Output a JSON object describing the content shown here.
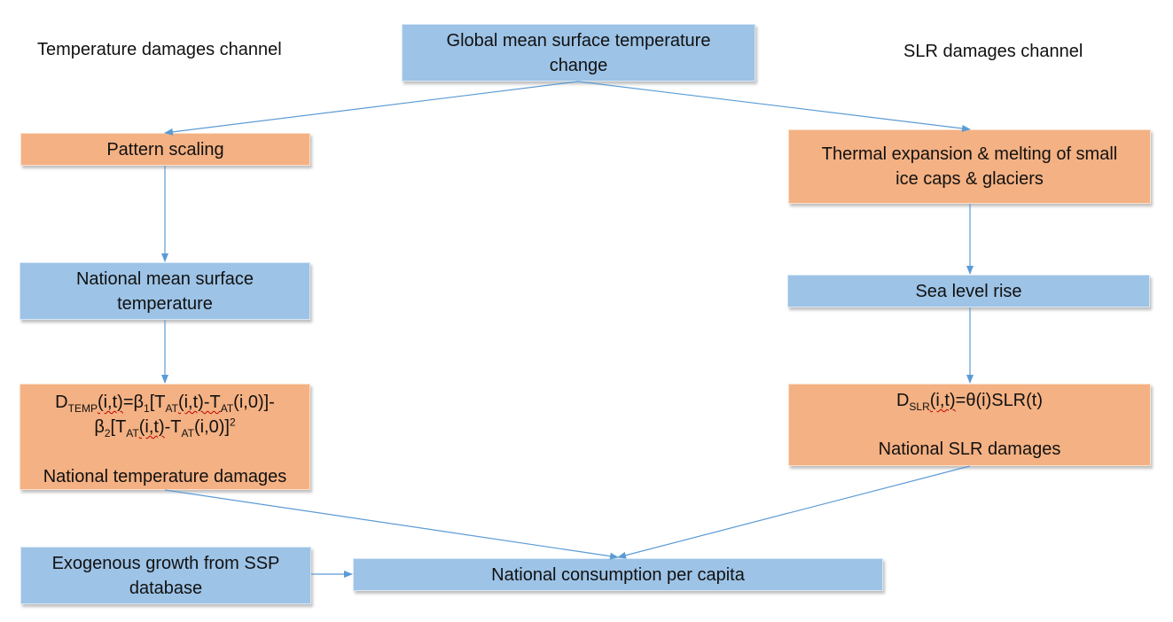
{
  "channels": {
    "left": "Temperature damages channel",
    "right": "SLR damages channel"
  },
  "boxes": {
    "global_temp": "Global mean surface temperature change",
    "pattern_scaling": "Pattern scaling",
    "national_temp": "National mean surface temperature",
    "temp_damages_label": "National temperature damages",
    "thermal_expansion": "Thermal expansion & melting of small ice caps & glaciers",
    "sea_level_rise": "Sea level rise",
    "slr_damages_label": "National SLR damages",
    "exogenous_growth": "Exogenous growth from SSP database",
    "consumption": "National consumption per capita"
  },
  "formulas": {
    "temp": {
      "D": "D",
      "D_sub": "TEMP",
      "args": "(i,t)",
      "eq1": "=β",
      "beta1_sub": "1",
      "br1": "[T",
      "at1": "AT",
      "t1": "(i,t)-T",
      "at2": "AT",
      "t2": "(i,0)]-",
      "beta2": "β",
      "beta2_sub": "2",
      "br2": "[T",
      "at3": "AT",
      "t3": "(i,t)",
      "t3b": "-T",
      "at4": "AT",
      "t4": "(i,0)]",
      "sq": "2"
    },
    "slr": {
      "D": "D",
      "D_sub": "SLR",
      "args": "(i,t)",
      "rest": "=θ(i)SLR(t)"
    }
  },
  "colors": {
    "blue_box": "#9dc3e6",
    "orange_box": "#f4b183",
    "arrow": "#5b9bd5"
  }
}
